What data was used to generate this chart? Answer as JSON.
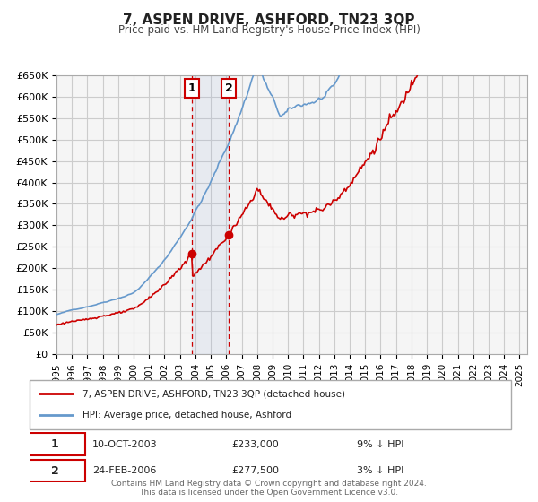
{
  "title": "7, ASPEN DRIVE, ASHFORD, TN23 3QP",
  "subtitle": "Price paid vs. HM Land Registry's House Price Index (HPI)",
  "ylim": [
    0,
    650000
  ],
  "yticks": [
    0,
    50000,
    100000,
    150000,
    200000,
    250000,
    300000,
    350000,
    400000,
    450000,
    500000,
    550000,
    600000,
    650000
  ],
  "ytick_labels": [
    "£0",
    "£50K",
    "£100K",
    "£150K",
    "£200K",
    "£250K",
    "£300K",
    "£350K",
    "£400K",
    "£450K",
    "£500K",
    "£550K",
    "£600K",
    "£650K"
  ],
  "xlim_start": 1995.0,
  "xlim_end": 2025.5,
  "xtick_years": [
    1995,
    1996,
    1997,
    1998,
    1999,
    2000,
    2001,
    2002,
    2003,
    2004,
    2005,
    2006,
    2007,
    2008,
    2009,
    2010,
    2011,
    2012,
    2013,
    2014,
    2015,
    2016,
    2017,
    2018,
    2019,
    2020,
    2021,
    2022,
    2023,
    2024,
    2025
  ],
  "red_line_color": "#cc0000",
  "blue_line_color": "#6699cc",
  "grid_color": "#cccccc",
  "background_color": "#ffffff",
  "plot_bg_color": "#f5f5f5",
  "sale1_x": 2003.78,
  "sale1_y": 233000,
  "sale1_label": "1",
  "sale1_date": "10-OCT-2003",
  "sale1_price": "£233,000",
  "sale1_hpi": "9% ↓ HPI",
  "sale2_x": 2006.15,
  "sale2_y": 277500,
  "sale2_label": "2",
  "sale2_date": "24-FEB-2006",
  "sale2_price": "£277,500",
  "sale2_hpi": "3% ↓ HPI",
  "legend_line1": "7, ASPEN DRIVE, ASHFORD, TN23 3QP (detached house)",
  "legend_line2": "HPI: Average price, detached house, Ashford",
  "footer1": "Contains HM Land Registry data © Crown copyright and database right 2024.",
  "footer2": "This data is licensed under the Open Government Licence v3.0.",
  "shade_x1": 2003.78,
  "shade_x2": 2006.15
}
